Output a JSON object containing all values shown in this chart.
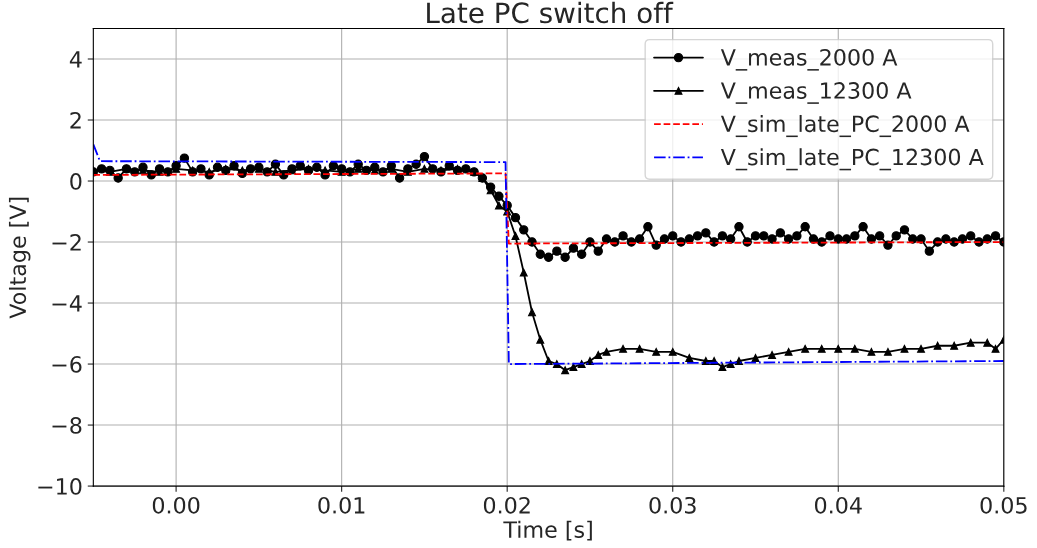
{
  "chart_data": {
    "type": "line",
    "title": "Late PC switch off",
    "xlabel": "Time [s]",
    "ylabel": "Voltage [V]",
    "xlim": [
      -0.005,
      0.05
    ],
    "xticks": [
      {
        "value": 0,
        "label": "0.00"
      },
      0.01,
      0.02,
      0.03,
      0.04,
      0.05
    ],
    "ylim": [
      -10,
      5
    ],
    "yticks": [
      {
        "value": -10,
        "label": "−10"
      },
      {
        "value": -8,
        "label": "−8"
      },
      {
        "value": -6,
        "label": "−6"
      },
      {
        "value": -4,
        "label": "−4"
      },
      {
        "value": -2,
        "label": "−2"
      },
      0,
      2,
      4
    ],
    "grid": true,
    "legend": "top right",
    "series": [
      {
        "name": "V_meas_2000 A",
        "color": "#000000",
        "marker": "circle",
        "line_style": "solid",
        "x": [
          -0.005,
          -0.0045,
          -0.004,
          -0.0035,
          -0.003,
          -0.0025,
          -0.002,
          -0.0015,
          -0.001,
          -0.0005,
          0.0,
          0.0005,
          0.001,
          0.0015,
          0.002,
          0.0025,
          0.003,
          0.0035,
          0.004,
          0.0045,
          0.005,
          0.0055,
          0.006,
          0.0065,
          0.007,
          0.0075,
          0.008,
          0.0085,
          0.009,
          0.0095,
          0.01,
          0.0105,
          0.011,
          0.0115,
          0.012,
          0.0125,
          0.013,
          0.0135,
          0.014,
          0.0145,
          0.015,
          0.0155,
          0.016,
          0.0165,
          0.017,
          0.0175,
          0.018,
          0.0185,
          0.019,
          0.0195,
          0.02,
          0.0205,
          0.021,
          0.0215,
          0.022,
          0.0225,
          0.023,
          0.0235,
          0.024,
          0.0245,
          0.025,
          0.0255,
          0.026,
          0.0265,
          0.027,
          0.0275,
          0.028,
          0.0285,
          0.029,
          0.0295,
          0.03,
          0.0305,
          0.031,
          0.0315,
          0.032,
          0.0325,
          0.033,
          0.0335,
          0.034,
          0.0345,
          0.035,
          0.0355,
          0.036,
          0.0365,
          0.037,
          0.0375,
          0.038,
          0.0385,
          0.039,
          0.0395,
          0.04,
          0.0405,
          0.041,
          0.0415,
          0.042,
          0.0425,
          0.043,
          0.0435,
          0.044,
          0.0445,
          0.045,
          0.0455,
          0.046,
          0.0465,
          0.047,
          0.0475,
          0.048,
          0.0485,
          0.049,
          0.0495,
          0.05
        ],
        "values": [
          0.3,
          0.4,
          0.35,
          0.1,
          0.4,
          0.3,
          0.45,
          0.2,
          0.4,
          0.3,
          0.5,
          0.75,
          0.3,
          0.4,
          0.2,
          0.45,
          0.35,
          0.5,
          0.25,
          0.4,
          0.45,
          0.3,
          0.55,
          0.2,
          0.4,
          0.5,
          0.35,
          0.45,
          0.2,
          0.5,
          0.4,
          0.3,
          0.55,
          0.35,
          0.45,
          0.3,
          0.5,
          0.1,
          0.4,
          0.55,
          0.8,
          0.4,
          0.3,
          0.5,
          0.35,
          0.4,
          0.3,
          0.1,
          -0.2,
          -0.5,
          -0.8,
          -1.2,
          -1.6,
          -2.0,
          -2.4,
          -2.5,
          -2.3,
          -2.5,
          -2.2,
          -2.4,
          -2.0,
          -2.3,
          -1.9,
          -2.0,
          -1.8,
          -2.0,
          -1.9,
          -1.5,
          -2.1,
          -1.9,
          -1.8,
          -2.0,
          -1.9,
          -1.8,
          -1.7,
          -2.0,
          -1.8,
          -1.9,
          -1.5,
          -2.0,
          -1.8,
          -1.8,
          -1.9,
          -1.7,
          -1.9,
          -1.8,
          -1.5,
          -1.9,
          -2.0,
          -1.8,
          -1.9,
          -1.9,
          -1.8,
          -1.5,
          -1.9,
          -1.8,
          -2.1,
          -1.8,
          -1.6,
          -1.9,
          -1.9,
          -2.3,
          -2.0,
          -1.9,
          -2.0,
          -1.9,
          -1.8,
          -2.0,
          -1.9,
          -1.8,
          -2.0
        ]
      },
      {
        "name": "V_meas_12300 A",
        "color": "#000000",
        "marker": "triangle",
        "line_style": "solid",
        "x": [
          -0.005,
          -0.004,
          -0.003,
          -0.002,
          -0.001,
          0.0,
          0.001,
          0.002,
          0.003,
          0.004,
          0.005,
          0.006,
          0.007,
          0.008,
          0.009,
          0.01,
          0.011,
          0.012,
          0.013,
          0.014,
          0.015,
          0.016,
          0.017,
          0.018,
          0.0185,
          0.019,
          0.0195,
          0.02,
          0.0205,
          0.021,
          0.0215,
          0.022,
          0.0225,
          0.023,
          0.0235,
          0.024,
          0.0245,
          0.025,
          0.0255,
          0.026,
          0.027,
          0.028,
          0.029,
          0.03,
          0.031,
          0.032,
          0.0325,
          0.033,
          0.0335,
          0.034,
          0.035,
          0.036,
          0.037,
          0.038,
          0.039,
          0.04,
          0.041,
          0.042,
          0.043,
          0.044,
          0.045,
          0.046,
          0.047,
          0.048,
          0.049,
          0.0495,
          0.05
        ],
        "values": [
          0.35,
          0.3,
          0.4,
          0.35,
          0.3,
          0.4,
          0.35,
          0.3,
          0.4,
          0.35,
          0.4,
          0.3,
          0.35,
          0.4,
          0.35,
          0.3,
          0.4,
          0.35,
          0.4,
          0.3,
          0.4,
          0.35,
          0.4,
          0.3,
          0.1,
          -0.3,
          -0.8,
          -1.0,
          -1.8,
          -3.0,
          -4.3,
          -5.2,
          -5.9,
          -6.0,
          -6.2,
          -6.1,
          -6.0,
          -5.9,
          -5.7,
          -5.6,
          -5.5,
          -5.5,
          -5.6,
          -5.6,
          -5.8,
          -5.9,
          -5.9,
          -6.1,
          -6.0,
          -5.9,
          -5.8,
          -5.7,
          -5.6,
          -5.5,
          -5.5,
          -5.5,
          -5.5,
          -5.6,
          -5.6,
          -5.5,
          -5.5,
          -5.4,
          -5.4,
          -5.3,
          -5.3,
          -5.5,
          -5.2
        ]
      },
      {
        "name": "V_sim_late_PC_2000 A",
        "color": "#ff0000",
        "marker": "none",
        "line_style": "dashed",
        "x": [
          -0.005,
          0.0199,
          0.0201,
          0.05
        ],
        "values": [
          0.2,
          0.25,
          -2.05,
          -2.0
        ]
      },
      {
        "name": "V_sim_late_PC_12300 A",
        "color": "#0000ff",
        "marker": "none",
        "line_style": "dashdot",
        "x": [
          -0.005,
          -0.0046,
          0.0199,
          0.0201,
          0.05
        ],
        "values": [
          1.2,
          0.65,
          0.62,
          -6.0,
          -5.9
        ]
      }
    ]
  }
}
